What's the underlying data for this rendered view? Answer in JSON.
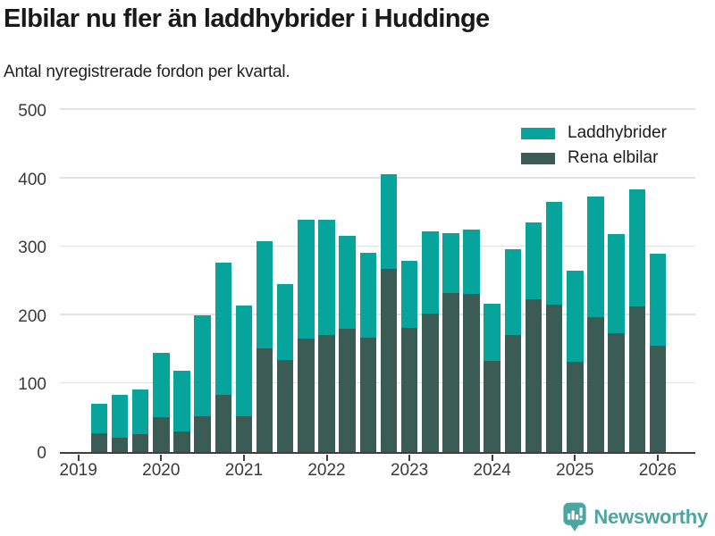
{
  "title": "Elbilar nu fler än laddhybrider i Huddinge",
  "subtitle": "Antal nyregistrerade fordon per kvartal.",
  "legend": {
    "items": [
      {
        "label": "Laddhybrider",
        "color": "#06a49a"
      },
      {
        "label": "Rena elbilar",
        "color": "#3b5c55"
      }
    ]
  },
  "footer": {
    "brand": "Newsworthy",
    "logo_icon": "bar-chart-bubble-icon",
    "brand_color": "#4ba6a1"
  },
  "chart_data": {
    "type": "bar",
    "stacked": true,
    "title": "Elbilar nu fler än laddhybrider i Huddinge",
    "subtitle": "Antal nyregistrerade fordon per kvartal.",
    "x": [
      "2019Q2",
      "2019Q3",
      "2019Q4",
      "2020Q1",
      "2020Q2",
      "2020Q3",
      "2020Q4",
      "2021Q1",
      "2021Q2",
      "2021Q3",
      "2021Q4",
      "2022Q1",
      "2022Q2",
      "2022Q3",
      "2022Q4",
      "2023Q1",
      "2023Q2",
      "2023Q3",
      "2023Q4",
      "2024Q1",
      "2024Q2",
      "2024Q3",
      "2024Q4",
      "2025Q1",
      "2025Q2",
      "2025Q3",
      "2025Q4",
      "2026Q1"
    ],
    "series": [
      {
        "name": "Rena elbilar",
        "color": "#3b5c55",
        "values": [
          28,
          21,
          26,
          51,
          30,
          52,
          83,
          52,
          152,
          135,
          166,
          171,
          180,
          167,
          267,
          181,
          202,
          233,
          231,
          133,
          171,
          223,
          215,
          132,
          197,
          174,
          213,
          155
        ]
      },
      {
        "name": "Laddhybrider",
        "color": "#06a49a",
        "values": [
          42,
          62,
          65,
          94,
          89,
          148,
          194,
          162,
          156,
          110,
          174,
          169,
          136,
          124,
          139,
          99,
          120,
          87,
          94,
          84,
          125,
          112,
          151,
          133,
          177,
          144,
          171,
          135
        ]
      }
    ],
    "totals": [
      70,
      83,
      91,
      145,
      119,
      200,
      277,
      214,
      308,
      245,
      340,
      340,
      316,
      291,
      406,
      280,
      322,
      320,
      325,
      217,
      296,
      335,
      366,
      265,
      374,
      318,
      384,
      290
    ],
    "year_ticks": [
      "2019",
      "2020",
      "2021",
      "2022",
      "2023",
      "2024",
      "2025",
      "2026"
    ],
    "ylim": [
      0,
      500
    ],
    "yticks": [
      0,
      100,
      200,
      300,
      400,
      500
    ],
    "grid": true,
    "legend_position": "top-right"
  }
}
